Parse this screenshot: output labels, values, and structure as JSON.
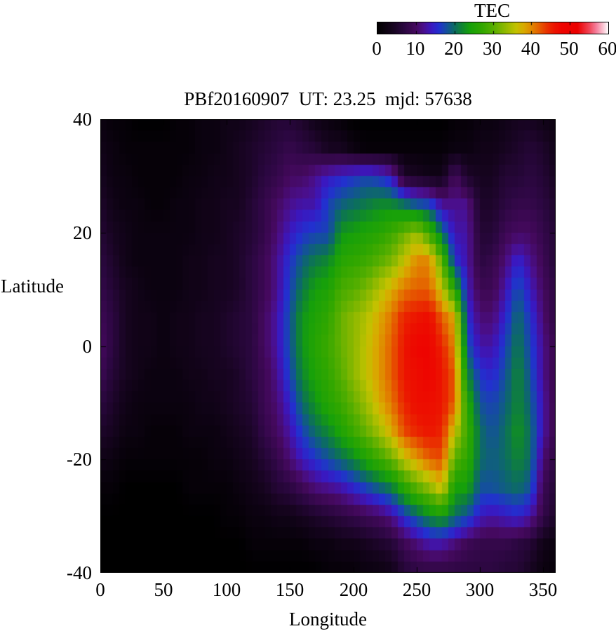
{
  "chart_data": {
    "type": "heatmap",
    "title": "PBf20160907  UT: 23.25  mjd: 57638",
    "xlabel": "Longitude",
    "ylabel": "Latitude",
    "xlim": [
      0,
      360
    ],
    "ylim": [
      -40,
      40
    ],
    "x_ticks": [
      0,
      50,
      100,
      150,
      200,
      250,
      300,
      350
    ],
    "y_ticks": [
      40,
      20,
      0,
      -20,
      -40
    ],
    "grid_lines": false,
    "colorbar": {
      "title": "TEC",
      "min": 0,
      "max": 60,
      "ticks": [
        0,
        10,
        20,
        30,
        40,
        50,
        60
      ],
      "position": "top"
    },
    "palette": [
      [
        0,
        "#000000"
      ],
      [
        4,
        "#16041f"
      ],
      [
        7,
        "#2b0740"
      ],
      [
        10,
        "#45095e"
      ],
      [
        12,
        "#4a0f8c"
      ],
      [
        14,
        "#3a18c0"
      ],
      [
        16,
        "#2230cf"
      ],
      [
        18,
        "#14509c"
      ],
      [
        20,
        "#0c6c62"
      ],
      [
        22,
        "#0f8630"
      ],
      [
        24,
        "#16a00a"
      ],
      [
        27,
        "#2fa600"
      ],
      [
        30,
        "#55ae00"
      ],
      [
        33,
        "#8cb800"
      ],
      [
        36,
        "#c2c200"
      ],
      [
        38,
        "#d8ab00"
      ],
      [
        40,
        "#e08800"
      ],
      [
        42,
        "#e55f00"
      ],
      [
        44,
        "#e93300"
      ],
      [
        46,
        "#ec1400"
      ],
      [
        48,
        "#ee0400"
      ],
      [
        52,
        "#ec0000"
      ],
      [
        55,
        "#f04456"
      ],
      [
        57,
        "#f583a0"
      ],
      [
        59,
        "#fcd3de"
      ],
      [
        60,
        "#ffffff"
      ]
    ],
    "grid": {
      "lon0": 0,
      "dlon": 10,
      "nlon": 37,
      "lat0": 40,
      "dlat": -5,
      "nlat": 17
    },
    "cell_size_deg": {
      "lon": 5,
      "lat": 2
    },
    "values": [
      [
        2,
        1,
        1,
        0,
        0,
        0,
        1,
        1,
        2,
        2,
        3,
        3,
        4,
        5,
        6,
        6,
        5,
        3,
        2,
        1,
        0,
        0,
        0,
        0,
        0,
        0,
        0,
        0,
        1,
        1,
        2,
        2,
        3,
        4,
        4,
        3,
        2
      ],
      [
        3,
        2,
        1,
        1,
        1,
        1,
        1,
        1,
        2,
        2,
        3,
        4,
        5,
        6,
        7,
        8,
        7,
        6,
        4,
        4,
        2,
        1,
        1,
        1,
        1,
        1,
        1,
        1,
        2,
        2,
        3,
        3,
        4,
        5,
        6,
        5,
        3
      ],
      [
        4,
        2,
        2,
        1,
        1,
        1,
        1,
        2,
        2,
        3,
        3,
        4,
        5,
        7,
        8,
        10,
        10,
        12,
        14,
        15,
        16,
        17,
        16,
        14,
        5,
        4,
        3,
        3,
        10,
        5,
        4,
        4,
        6,
        6,
        7,
        6,
        4
      ],
      [
        5,
        3,
        2,
        2,
        1,
        1,
        2,
        2,
        3,
        3,
        4,
        4,
        6,
        8,
        10,
        12,
        13,
        13,
        17,
        19,
        20,
        21,
        22,
        22,
        20,
        18,
        17,
        12,
        12,
        12,
        5,
        5,
        7,
        8,
        8,
        7,
        5
      ],
      [
        6,
        4,
        3,
        2,
        2,
        2,
        2,
        2,
        3,
        3,
        4,
        5,
        6,
        8,
        11,
        14,
        16,
        17,
        17,
        23,
        24,
        25,
        26,
        28,
        31,
        34,
        28,
        20,
        13,
        13,
        6,
        6,
        9,
        10,
        10,
        8,
        6
      ],
      [
        7,
        5,
        3,
        2,
        2,
        2,
        2,
        3,
        3,
        4,
        4,
        5,
        7,
        9,
        12,
        16,
        19,
        21,
        22,
        26,
        27,
        28,
        30,
        32,
        36,
        40,
        40,
        30,
        16,
        13,
        7,
        8,
        11,
        15,
        12,
        9,
        6
      ],
      [
        8,
        6,
        4,
        3,
        2,
        2,
        2,
        3,
        3,
        4,
        4,
        5,
        7,
        9,
        12,
        17,
        21,
        24,
        25,
        29,
        30,
        32,
        35,
        38,
        41,
        42,
        42,
        36,
        26,
        14,
        9,
        9,
        13,
        18,
        14,
        10,
        7
      ],
      [
        9,
        7,
        4,
        3,
        3,
        2,
        3,
        3,
        4,
        4,
        5,
        6,
        7,
        10,
        13,
        18,
        23,
        25,
        27,
        31,
        33,
        35,
        38,
        41,
        45,
        46,
        47,
        42,
        38,
        16,
        11,
        11,
        15,
        20,
        16,
        11,
        7
      ],
      [
        10,
        7,
        4,
        3,
        3,
        2,
        3,
        3,
        4,
        4,
        5,
        6,
        7,
        10,
        13,
        18,
        23,
        26,
        28,
        31,
        33,
        36,
        39,
        42,
        46,
        48,
        48,
        45,
        40,
        18,
        13,
        13,
        17,
        21,
        17,
        12,
        8
      ],
      [
        9,
        6,
        4,
        3,
        2,
        2,
        2,
        3,
        3,
        4,
        4,
        5,
        7,
        9,
        12,
        17,
        22,
        25,
        27,
        30,
        33,
        36,
        39,
        42,
        46,
        47,
        48,
        46,
        42,
        22,
        16,
        15,
        18,
        22,
        18,
        12,
        8
      ],
      [
        7,
        5,
        3,
        2,
        2,
        2,
        2,
        2,
        3,
        3,
        4,
        5,
        6,
        9,
        11,
        15,
        20,
        23,
        26,
        28,
        31,
        34,
        38,
        41,
        45,
        47,
        47,
        46,
        42,
        26,
        18,
        17,
        19,
        22,
        19,
        13,
        8
      ],
      [
        5,
        4,
        2,
        2,
        1,
        1,
        1,
        2,
        2,
        2,
        3,
        4,
        5,
        8,
        10,
        13,
        17,
        20,
        22,
        25,
        28,
        31,
        34,
        38,
        43,
        45,
        46,
        45,
        36,
        28,
        20,
        18,
        20,
        23,
        20,
        13,
        8
      ],
      [
        3,
        2,
        1,
        1,
        1,
        1,
        1,
        1,
        1,
        2,
        2,
        3,
        4,
        6,
        8,
        11,
        14,
        16,
        18,
        20,
        22,
        25,
        28,
        31,
        36,
        39,
        42,
        43,
        30,
        27,
        20,
        19,
        20,
        22,
        20,
        11,
        7
      ],
      [
        1,
        1,
        0,
        0,
        0,
        0,
        0,
        1,
        1,
        1,
        1,
        2,
        3,
        4,
        6,
        7,
        9,
        11,
        12,
        13,
        15,
        17,
        19,
        21,
        26,
        30,
        33,
        37,
        24,
        24,
        18,
        18,
        19,
        20,
        18,
        9,
        6
      ],
      [
        0,
        0,
        0,
        0,
        0,
        0,
        0,
        0,
        0,
        0,
        1,
        1,
        2,
        2,
        3,
        3,
        4,
        5,
        6,
        7,
        8,
        9,
        10,
        12,
        16,
        19,
        22,
        24,
        20,
        18,
        14,
        13,
        14,
        15,
        13,
        8,
        5
      ],
      [
        0,
        0,
        0,
        0,
        0,
        0,
        0,
        0,
        0,
        0,
        0,
        0,
        1,
        1,
        1,
        1,
        1,
        2,
        2,
        3,
        3,
        4,
        5,
        6,
        9,
        11,
        13,
        13,
        11,
        9,
        8,
        8,
        8,
        7,
        6,
        3,
        2
      ],
      [
        0,
        0,
        0,
        0,
        0,
        0,
        0,
        0,
        0,
        0,
        0,
        0,
        0,
        0,
        0,
        0,
        0,
        0,
        1,
        1,
        1,
        2,
        2,
        3,
        6,
        7,
        7,
        7,
        7,
        7,
        7,
        7,
        6,
        6,
        4,
        2,
        1
      ]
    ]
  }
}
